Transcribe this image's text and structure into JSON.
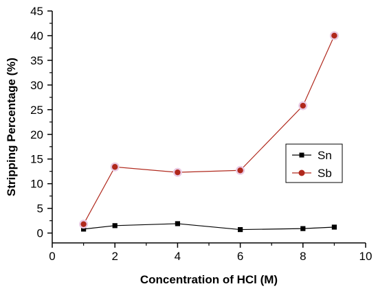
{
  "chart_data": {
    "type": "line",
    "xlabel": "Concentration of HCl (M)",
    "ylabel": "Stripping Percentage (%)",
    "xlim": [
      0,
      10
    ],
    "ylim": [
      -2,
      45
    ],
    "xticks": [
      0,
      2,
      4,
      6,
      8,
      10
    ],
    "yticks": [
      0,
      5,
      10,
      15,
      20,
      25,
      30,
      35,
      40,
      45
    ],
    "grid": false,
    "legend_position": "right",
    "series": [
      {
        "name": "Sn",
        "marker": "square",
        "color": "#000000",
        "x": [
          1,
          2,
          4,
          6,
          8,
          9
        ],
        "y": [
          0.8,
          1.5,
          1.9,
          0.7,
          0.9,
          1.2
        ]
      },
      {
        "name": "Sb",
        "marker": "circle",
        "color": "#b0281c",
        "x": [
          1,
          2,
          4,
          6,
          8,
          9
        ],
        "y": [
          1.8,
          13.4,
          12.3,
          12.7,
          25.8,
          40.0
        ]
      }
    ]
  }
}
